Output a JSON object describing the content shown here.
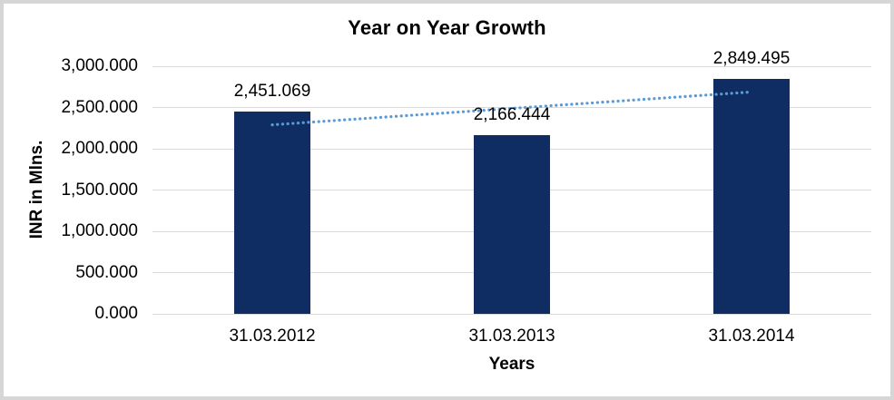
{
  "chart_data": {
    "type": "bar",
    "title": "Year on Year Growth",
    "xlabel": "Years",
    "ylabel": "INR in Mlns.",
    "categories": [
      "31.03.2012",
      "31.03.2013",
      "31.03.2014"
    ],
    "values": [
      2451.069,
      2166.444,
      2849.495
    ],
    "data_labels": [
      "2,451.069",
      "2,166.444",
      "2,849.495"
    ],
    "ylim": [
      0,
      3000
    ],
    "ytick_values": [
      0,
      500,
      1000,
      1500,
      2000,
      2500,
      3000
    ],
    "ytick_labels": [
      "0.000",
      "500.000",
      "1,000.000",
      "1,500.000",
      "2,000.000",
      "2,500.000",
      "3,000.000"
    ],
    "grid": true,
    "legend_position": "none",
    "colors": {
      "bar": "#0f2d63",
      "gridline": "#d9d9d9",
      "trendline": "#5b9bd5",
      "text": "#000000",
      "frame_border": "#d6d6d6"
    },
    "trendline": {
      "type": "linear",
      "style": "dotted",
      "start_value": 2290,
      "end_value": 2688
    }
  }
}
